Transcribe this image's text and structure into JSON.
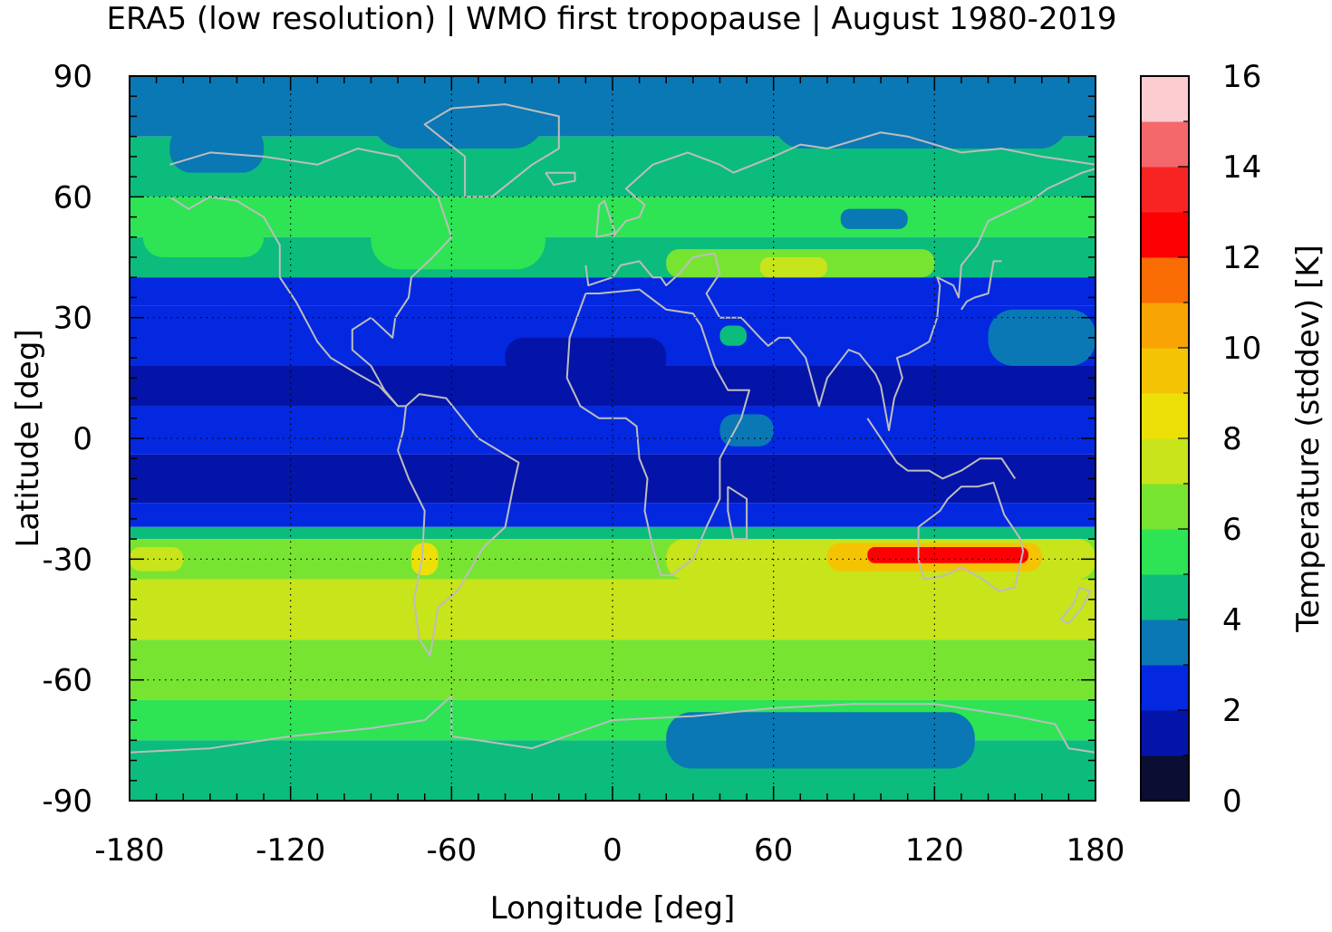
{
  "chart_data": {
    "type": "heatmap",
    "title": "ERA5 (low resolution) | WMO first tropopause | August 1980-2019",
    "xlabel": "Longitude [deg]",
    "ylabel": "Latitude [deg]",
    "colorbar_label": "Temperature (stddev) [K]",
    "xlim": [
      -180,
      180
    ],
    "ylim": [
      -90,
      90
    ],
    "xticks": [
      -180,
      -120,
      -60,
      0,
      60,
      120,
      180
    ],
    "yticks": [
      90,
      60,
      30,
      0,
      -30,
      -60,
      -90
    ],
    "colorbar": {
      "range": [
        0,
        16
      ],
      "ticks": [
        0,
        2,
        4,
        6,
        8,
        10,
        12,
        14,
        16
      ],
      "step": 1,
      "colors": [
        "#0b0d33",
        "#0414a8",
        "#0428e0",
        "#0a78b4",
        "#0cbc7c",
        "#2ee454",
        "#78e432",
        "#c8e41a",
        "#ece008",
        "#f4c404",
        "#f8a404",
        "#fa6c04",
        "#fc0004",
        "#f82424",
        "#f4686c",
        "#fcccd0"
      ]
    },
    "grid": true,
    "contour_overlay": "coastlines",
    "zonal_bands": [
      {
        "lat": [
          75,
          90
        ],
        "value": 3.5
      },
      {
        "lat": [
          60,
          75
        ],
        "value": 4.5
      },
      {
        "lat": [
          50,
          60
        ],
        "value": 5.5
      },
      {
        "lat": [
          40,
          50
        ],
        "value": 4.5
      },
      {
        "lat": [
          33,
          40
        ],
        "value": 2.5
      },
      {
        "lat": [
          18,
          33
        ],
        "value": 2.5
      },
      {
        "lat": [
          8,
          18
        ],
        "value": 1.5
      },
      {
        "lat": [
          -4,
          8
        ],
        "value": 2.5
      },
      {
        "lat": [
          -16,
          -4
        ],
        "value": 1.5
      },
      {
        "lat": [
          -22,
          -16
        ],
        "value": 2.5
      },
      {
        "lat": [
          -25,
          -22
        ],
        "value": 4.5
      },
      {
        "lat": [
          -35,
          -25
        ],
        "value": 6.5
      },
      {
        "lat": [
          -50,
          -35
        ],
        "value": 7.5
      },
      {
        "lat": [
          -65,
          -50
        ],
        "value": 6.5
      },
      {
        "lat": [
          -75,
          -65
        ],
        "value": 5.5
      },
      {
        "lat": [
          -90,
          -75
        ],
        "value": 4.5
      }
    ],
    "regional_features": [
      {
        "lon": [
          -165,
          -130
        ],
        "lat": [
          66,
          78
        ],
        "value": 3.5
      },
      {
        "lon": [
          -90,
          -25
        ],
        "lat": [
          72,
          90
        ],
        "value": 3.5
      },
      {
        "lon": [
          60,
          170
        ],
        "lat": [
          72,
          88
        ],
        "value": 3.5
      },
      {
        "lon": [
          85,
          110
        ],
        "lat": [
          52,
          57
        ],
        "value": 3.5
      },
      {
        "lon": [
          -175,
          -130
        ],
        "lat": [
          45,
          56
        ],
        "value": 5.5
      },
      {
        "lon": [
          -90,
          -25
        ],
        "lat": [
          42,
          58
        ],
        "value": 5.5
      },
      {
        "lon": [
          20,
          120
        ],
        "lat": [
          40,
          47
        ],
        "value": 6.5
      },
      {
        "lon": [
          55,
          80
        ],
        "lat": [
          40,
          45
        ],
        "value": 7.5
      },
      {
        "lon": [
          140,
          180
        ],
        "lat": [
          18,
          32
        ],
        "value": 3.5
      },
      {
        "lon": [
          40,
          50
        ],
        "lat": [
          23,
          28
        ],
        "value": 4.5
      },
      {
        "lon": [
          -40,
          20
        ],
        "lat": [
          15,
          25
        ],
        "value": 1.5
      },
      {
        "lon": [
          40,
          60
        ],
        "lat": [
          -2,
          6
        ],
        "value": 3.5
      },
      {
        "lon": [
          -180,
          -160
        ],
        "lat": [
          -33,
          -27
        ],
        "value": 7.5
      },
      {
        "lon": [
          -75,
          -65
        ],
        "lat": [
          -34,
          -26
        ],
        "value": 8.5
      },
      {
        "lon": [
          20,
          180
        ],
        "lat": [
          -35,
          -25
        ],
        "value": 7.5
      },
      {
        "lon": [
          80,
          160
        ],
        "lat": [
          -33,
          -26
        ],
        "value": 9.5
      },
      {
        "lon": [
          95,
          155
        ],
        "lat": [
          -31,
          -27
        ],
        "value": 12.5
      },
      {
        "lon": [
          20,
          135
        ],
        "lat": [
          -82,
          -68
        ],
        "value": 3.5
      }
    ]
  }
}
